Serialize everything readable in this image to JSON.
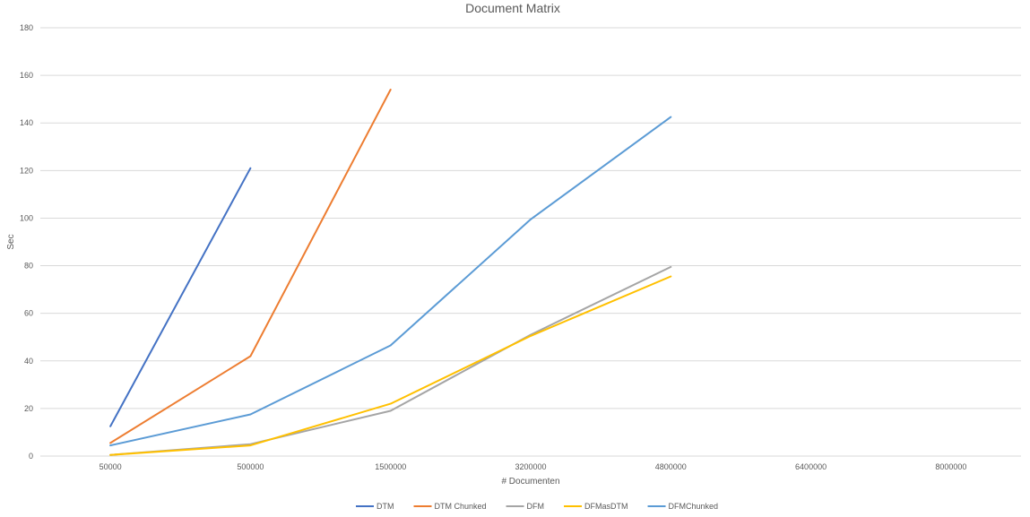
{
  "chart_data": {
    "type": "line",
    "title": "Document Matrix",
    "xlabel": "# Documenten",
    "ylabel": "Sec",
    "categories": [
      "50000",
      "500000",
      "1500000",
      "3200000",
      "4800000",
      "6400000",
      "8000000"
    ],
    "ylim": [
      0,
      180
    ],
    "yticks": [
      0,
      20,
      40,
      60,
      80,
      100,
      120,
      140,
      160,
      180
    ],
    "grid": true,
    "legend_position": "bottom",
    "series": [
      {
        "name": "DTM",
        "color": "#4472c4",
        "values": [
          12.5,
          121,
          null,
          null,
          null,
          null,
          null
        ]
      },
      {
        "name": "DTM Chunked",
        "color": "#ed7d31",
        "values": [
          5.5,
          42,
          154,
          null,
          null,
          null,
          null
        ]
      },
      {
        "name": "DFM",
        "color": "#a5a5a5",
        "values": [
          0.5,
          5,
          19,
          51,
          79.5,
          null,
          null
        ]
      },
      {
        "name": "DFMasDTM",
        "color": "#ffc000",
        "values": [
          0.5,
          4.5,
          22,
          50.5,
          75.5,
          null,
          null
        ]
      },
      {
        "name": "DFMChunked",
        "color": "#5b9bd5",
        "values": [
          4.5,
          17.5,
          46.5,
          99.5,
          142.5,
          null,
          null
        ]
      }
    ]
  }
}
